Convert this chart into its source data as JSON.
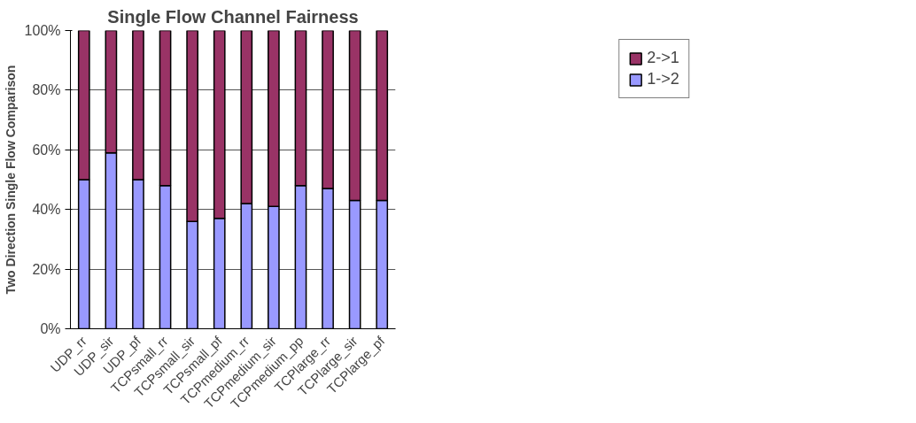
{
  "chart_data": {
    "type": "bar",
    "stacked": true,
    "title": "Single Flow Channel Fairness",
    "ylabel": "Two Direction Single Flow Comparison",
    "categories": [
      "UDP_rr",
      "UDP_sir",
      "UDP_pf",
      "TCPsmall_rr",
      "TCPsmall_sir",
      "TCPsmall_pf",
      "TCPmedium_rr",
      "TCPmedium_sir",
      "TCPmedium_pp",
      "TCPlarge_rr",
      "TCPlarge_sir",
      "TCPlarge_pf"
    ],
    "series": [
      {
        "name": "1->2",
        "color": "#9999ff",
        "values": [
          50,
          59,
          50,
          48,
          36,
          37,
          42,
          41,
          48,
          47,
          43,
          43
        ]
      },
      {
        "name": "2->1",
        "color": "#993366",
        "values": [
          50,
          41,
          50,
          52,
          64,
          63,
          58,
          59,
          52,
          53,
          57,
          57
        ]
      }
    ],
    "ylim": [
      0,
      100
    ],
    "yticks": [
      {
        "value": 0,
        "label": "0%"
      },
      {
        "value": 20,
        "label": "20%"
      },
      {
        "value": 40,
        "label": "40%"
      },
      {
        "value": 60,
        "label": "60%"
      },
      {
        "value": 80,
        "label": "80%"
      },
      {
        "value": 100,
        "label": "100%"
      }
    ],
    "grid": "y",
    "legend": "top right"
  }
}
